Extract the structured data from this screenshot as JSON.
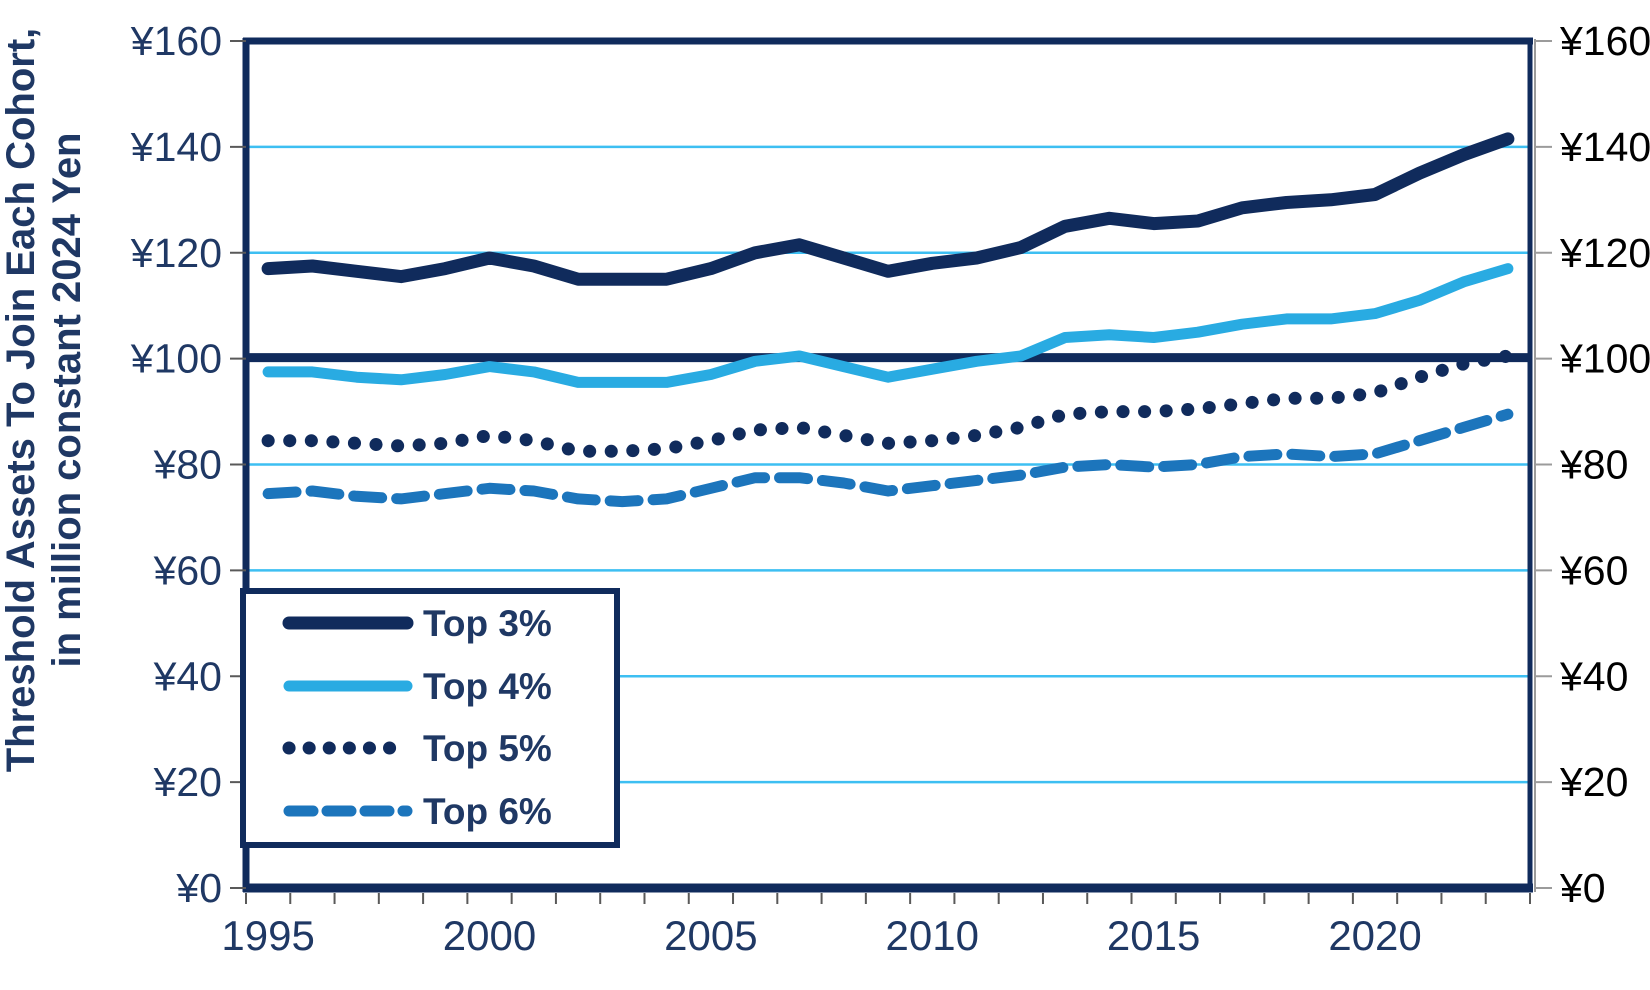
{
  "y_axis": {
    "title_line1": "Threshold Assets To Join Each Cohort,",
    "title_line2": "in million constant 2024 Yen",
    "left_tick_labels": [
      "¥0",
      "¥20",
      "¥40",
      "¥60",
      "¥80",
      "¥100",
      "¥120",
      "¥140",
      "¥160"
    ],
    "right_tick_labels": [
      "¥0",
      "¥20",
      "¥40",
      "¥60",
      "¥80",
      "¥100",
      "¥120",
      "¥140",
      "¥160"
    ],
    "tick_values": [
      0,
      20,
      40,
      60,
      80,
      100,
      120,
      140,
      160
    ]
  },
  "x_axis": {
    "labeled_years": [
      1995,
      2000,
      2005,
      2010,
      2015,
      2020
    ]
  },
  "legend": {
    "position": "bottom-left-inside"
  },
  "colors": {
    "navy": "#102B5C",
    "light_blue": "#29ABE2",
    "medium_blue": "#1C75BC",
    "gridline": "#3DBFF2",
    "label_navy": "#1F3864",
    "label_black": "#000000",
    "tick_gray": "#595959",
    "axis_gray": "#9B9B9B",
    "background": "#FFFFFF"
  },
  "chart_data": {
    "type": "line",
    "title": "",
    "xlabel": "",
    "ylabel": "Threshold Assets To Join Each Cohort, in million constant 2024 Yen",
    "ylim": [
      0,
      160
    ],
    "grid": "horizontal",
    "legend_position": "bottom-left inside plot",
    "x": [
      1995,
      1996,
      1997,
      1998,
      1999,
      2000,
      2001,
      2002,
      2003,
      2004,
      2005,
      2006,
      2007,
      2008,
      2009,
      2010,
      2011,
      2012,
      2013,
      2014,
      2015,
      2016,
      2017,
      2018,
      2019,
      2020,
      2021,
      2022,
      2023
    ],
    "series": [
      {
        "name": "Top 3%",
        "style": "solid",
        "color": "#102B5C",
        "values": [
          117,
          117.5,
          116.5,
          115.5,
          117,
          119,
          117.5,
          115,
          115,
          115,
          117,
          120,
          121.5,
          119,
          116.5,
          118,
          119,
          121,
          125,
          126.5,
          125.5,
          126,
          128.5,
          129.5,
          130,
          131,
          135,
          138.5,
          141.5
        ]
      },
      {
        "name": "Top 4%",
        "style": "solid",
        "color": "#29ABE2",
        "values": [
          97.5,
          97.5,
          96.5,
          96,
          97,
          98.5,
          97.5,
          95.5,
          95.5,
          95.5,
          97,
          99.5,
          100.5,
          98.5,
          96.5,
          98,
          99.5,
          100.5,
          104,
          104.5,
          104,
          105,
          106.5,
          107.5,
          107.5,
          108.5,
          111,
          114.5,
          117
        ]
      },
      {
        "name": "Top 5%",
        "style": "dotted",
        "color": "#102B5C",
        "values": [
          84.5,
          84.5,
          84,
          83.5,
          84,
          85.5,
          84.5,
          82.5,
          82.5,
          83,
          84.5,
          86.5,
          87,
          85.5,
          84,
          84.5,
          85.5,
          87,
          89.5,
          90,
          90,
          90.5,
          91.5,
          92.5,
          92.5,
          93.5,
          96.5,
          99,
          100.5
        ]
      },
      {
        "name": "Top 6%",
        "style": "dashed",
        "color": "#1C75BC",
        "values": [
          74.5,
          75,
          74,
          73.5,
          74.5,
          75.5,
          75,
          73.5,
          73,
          73.5,
          75.5,
          77.5,
          77.5,
          76.5,
          75,
          76,
          77,
          78,
          79.5,
          80,
          79.5,
          80,
          81.5,
          82,
          81.5,
          82,
          84.5,
          87,
          89.5
        ]
      }
    ],
    "reference_line": {
      "value": 100,
      "color": "#102B5C",
      "label": ""
    }
  }
}
